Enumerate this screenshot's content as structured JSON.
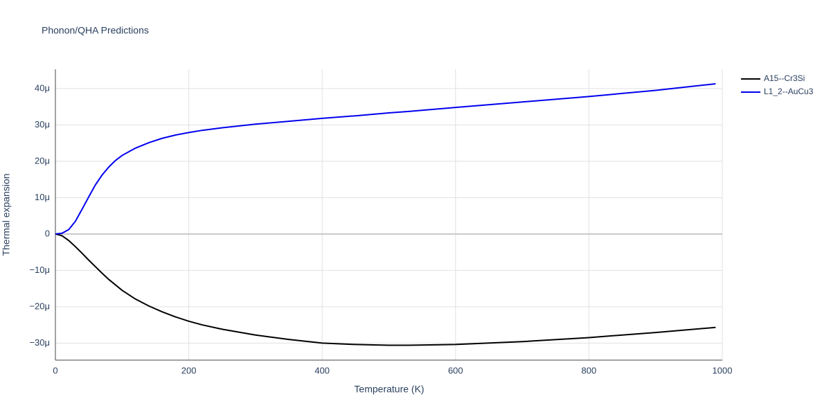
{
  "chart_data": {
    "type": "line",
    "title": "Phonon/QHA Predictions",
    "x_label": "Temperature (K)",
    "y_label": "Thermal expansion",
    "x": [
      0,
      10,
      20,
      30,
      40,
      50,
      60,
      70,
      80,
      90,
      100,
      120,
      140,
      160,
      180,
      200,
      220,
      250,
      300,
      350,
      400,
      450,
      500,
      530,
      600,
      700,
      800,
      900,
      990
    ],
    "series": [
      {
        "name": "A15--Cr3Si",
        "color": "#000000",
        "values": [
          0,
          -0.5,
          -1.8,
          -3.5,
          -5.3,
          -7.2,
          -9,
          -10.8,
          -12.5,
          -14,
          -15.5,
          -17.9,
          -19.8,
          -21.4,
          -22.8,
          -24,
          -25,
          -26.2,
          -27.8,
          -29,
          -30,
          -30.4,
          -30.6,
          -30.6,
          -30.4,
          -29.6,
          -28.5,
          -27.1,
          -25.7
        ]
      },
      {
        "name": "L1_2--AuCu3",
        "color": "#0000ee",
        "values": [
          0,
          0.2,
          1.2,
          3.5,
          6.8,
          10.2,
          13.5,
          16.2,
          18.4,
          20.2,
          21.6,
          23.6,
          25.1,
          26.3,
          27.2,
          27.9,
          28.5,
          29.2,
          30.2,
          31,
          31.8,
          32.5,
          33.3,
          33.7,
          34.8,
          36.3,
          37.8,
          39.5,
          41.3
        ]
      }
    ],
    "xlim": [
      0,
      1000
    ],
    "xticks": [
      0,
      200,
      400,
      600,
      800,
      1000
    ],
    "ylim": [
      -34.7,
      45.3
    ],
    "yticks": [
      {
        "value": -30,
        "label": "−30μ"
      },
      {
        "value": -20,
        "label": "−20μ"
      },
      {
        "value": -10,
        "label": "−10μ"
      },
      0,
      {
        "value": 10,
        "label": "10μ"
      },
      {
        "value": 20,
        "label": "20μ"
      },
      {
        "value": 30,
        "label": "30μ"
      },
      {
        "value": 40,
        "label": "40μ"
      }
    ],
    "grid": true,
    "legend": "top-right"
  }
}
